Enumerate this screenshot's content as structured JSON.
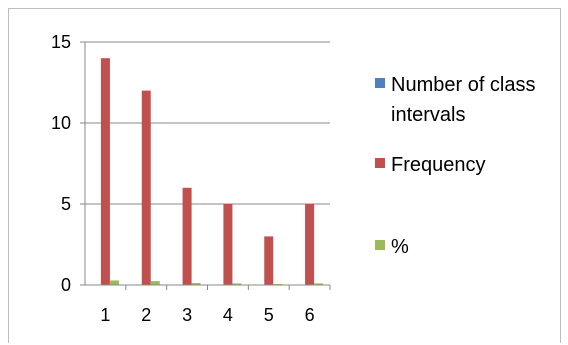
{
  "chart_data": {
    "type": "bar",
    "categories": [
      "1",
      "2",
      "3",
      "4",
      "5",
      "6"
    ],
    "series": [
      {
        "name": "Number of class intervals",
        "values": [
          0,
          0,
          0,
          0,
          0,
          0
        ],
        "color": "#4f81bd"
      },
      {
        "name": "Frequency",
        "values": [
          14,
          12,
          6,
          5,
          3,
          5
        ],
        "color": "#c0504d"
      },
      {
        "name": "%",
        "values": [
          0.28,
          0.24,
          0.12,
          0.1,
          0.06,
          0.1
        ],
        "color": "#9bbb59"
      }
    ],
    "yticks": [
      "0",
      "5",
      "10",
      "15"
    ],
    "ylim": [
      0,
      15
    ],
    "grid": true,
    "legend_position": "right"
  }
}
